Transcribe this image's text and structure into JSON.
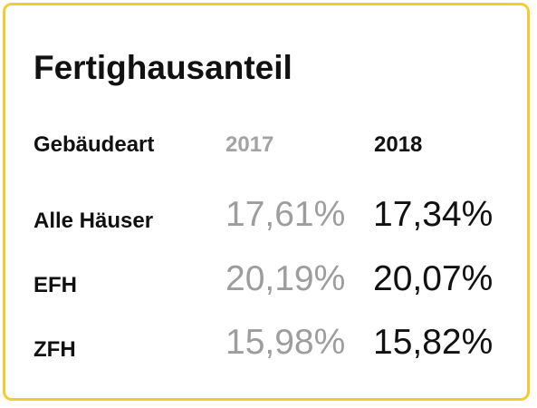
{
  "chart_data": {
    "type": "table",
    "title": "Fertighausanteil",
    "columns": [
      "Gebäudeart",
      "2017",
      "2018"
    ],
    "rows": [
      {
        "category": "Alle Häuser",
        "v2017": "17,61%",
        "v2018": "17,34%"
      },
      {
        "category": "EFH",
        "v2017": "20,19%",
        "v2018": "20,07%"
      },
      {
        "category": "ZFH",
        "v2017": "15,98%",
        "v2018": "15,82%"
      }
    ]
  },
  "colors": {
    "border": "#f2cd31",
    "text": "#111111",
    "muted": "#9d9d9d"
  }
}
